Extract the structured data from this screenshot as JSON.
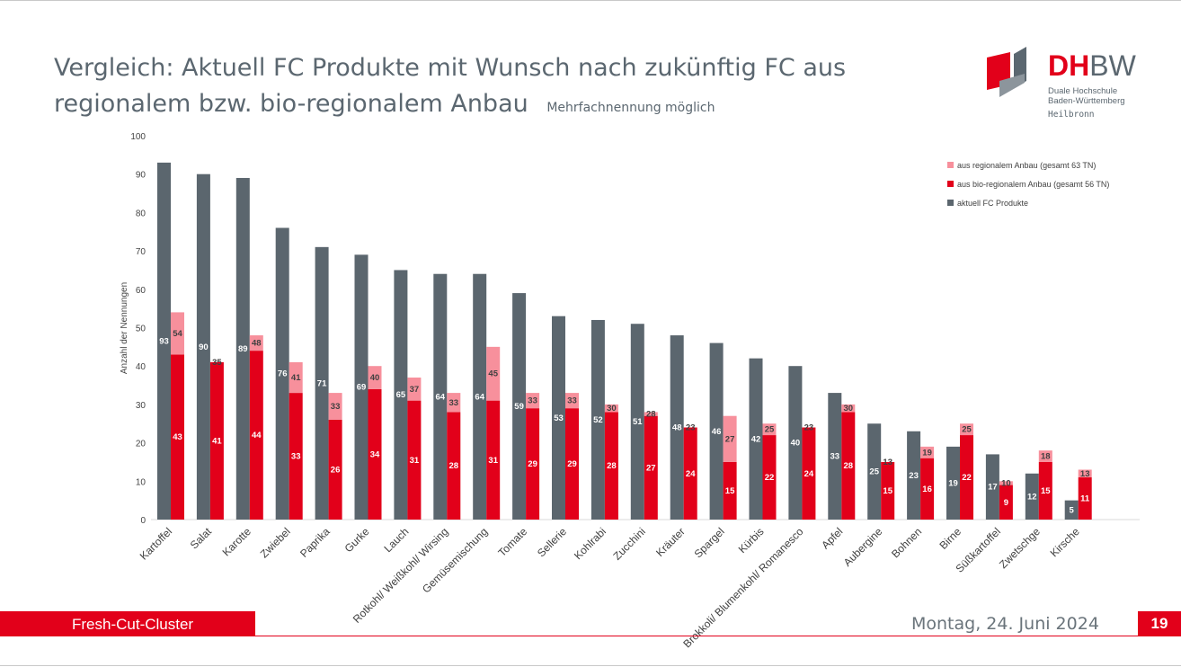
{
  "slide": {
    "title": "Vergleich: Aktuell FC Produkte mit Wunsch nach zukünftig FC aus regionalem bzw. bio-regionalem Anbau",
    "subtitle": "Mehrfachnennung möglich",
    "footer_label": "Fresh-Cut-Cluster",
    "footer_date": "Montag, 24. Juni 2024",
    "page_number": "19"
  },
  "logo": {
    "wordmark_dh": "DH",
    "wordmark_bw": "BW",
    "line1": "Duale Hochschule",
    "line2": "Baden-Württemberg",
    "line3": "Heilbronn"
  },
  "colors": {
    "current": "#5b666e",
    "bio_regional": "#e2001a",
    "regional": "#f7909c",
    "accent": "#e2001a"
  },
  "chart_data": {
    "type": "bar",
    "ylabel": "Anzahl der Nennungen",
    "xlabel": "",
    "ylim": [
      0,
      100
    ],
    "yticks": [
      0,
      10,
      20,
      30,
      40,
      50,
      60,
      70,
      80,
      90,
      100
    ],
    "grid": false,
    "legend_position": "top-right",
    "categories": [
      "Kartoffel",
      "Salat",
      "Karotte",
      "Zwiebel",
      "Paprika",
      "Gurke",
      "Lauch",
      "Rotkohl/ Weißkohl/ Wirsing",
      "Gemüsemischung",
      "Tomate",
      "Sellerie",
      "Kohlrabi",
      "Zucchini",
      "Kräuter",
      "Spargel",
      "Kürbis",
      "Brokkoli/ Blumenkohl/ Romanesco",
      "Apfel",
      "Aubergine",
      "Bohnen",
      "Birne",
      "Süßkartoffel",
      "Zwetschge",
      "Kirsche"
    ],
    "series": [
      {
        "name": "aktuell FC Produkte",
        "values": [
          93,
          90,
          89,
          76,
          71,
          69,
          65,
          64,
          64,
          59,
          53,
          52,
          51,
          48,
          46,
          42,
          40,
          33,
          25,
          23,
          19,
          17,
          12,
          5
        ]
      },
      {
        "name": "aus bio-regionalem Anbau (gesamt 56 TN)",
        "values": [
          43,
          41,
          44,
          33,
          26,
          34,
          31,
          28,
          31,
          29,
          29,
          28,
          27,
          24,
          15,
          22,
          24,
          28,
          15,
          16,
          22,
          9,
          15,
          11
        ]
      },
      {
        "name": "aus regionalem Anbau (gesamt 63 TN)",
        "values": [
          54,
          35,
          48,
          41,
          33,
          40,
          37,
          33,
          45,
          33,
          33,
          30,
          28,
          23,
          27,
          25,
          23,
          30,
          13,
          19,
          25,
          10,
          18,
          13
        ]
      }
    ],
    "legend_order": [
      "aus regionalem Anbau (gesamt 63 TN)",
      "aus bio-regionalem Anbau (gesamt 56 TN)",
      "aktuell FC Produkte"
    ]
  }
}
